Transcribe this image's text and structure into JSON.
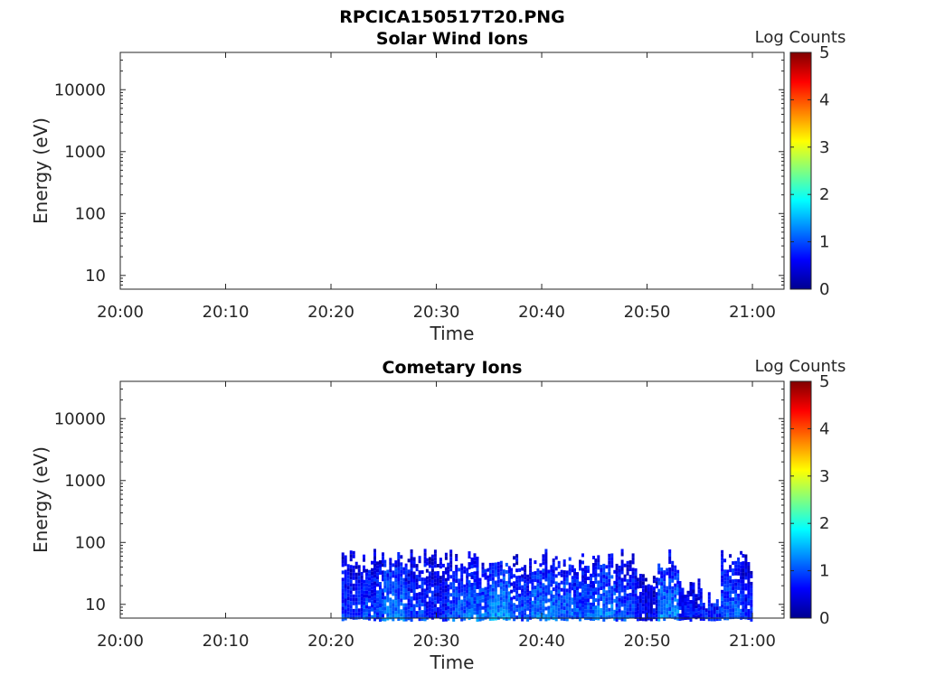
{
  "figure_title": "RPCICA150517T20.PNG",
  "chart_data": [
    {
      "type": "heatmap",
      "title": "Solar Wind Ions",
      "xlabel": "Time",
      "ylabel": "Energy (eV)",
      "y_scale": "log",
      "ylim": [
        6,
        40000
      ],
      "y_ticks": [
        10,
        100,
        1000,
        10000
      ],
      "y_tick_labels": [
        "10",
        "100",
        "1000",
        "10000"
      ],
      "x_ticks": [
        "20:00",
        "20:10",
        "20:20",
        "20:30",
        "20:40",
        "20:50",
        "21:00"
      ],
      "xlim": [
        "20:00",
        "21:03"
      ],
      "colorbar": {
        "label": "Log Counts",
        "min": 0,
        "max": 5,
        "ticks": [
          "0",
          "1",
          "2",
          "3",
          "4",
          "5"
        ],
        "colormap": "jet"
      },
      "data": []
    },
    {
      "type": "heatmap",
      "title": "Cometary Ions",
      "xlabel": "Time",
      "ylabel": "Energy (eV)",
      "y_scale": "log",
      "ylim": [
        6,
        40000
      ],
      "y_ticks": [
        10,
        100,
        1000,
        10000
      ],
      "y_tick_labels": [
        "10",
        "100",
        "1000",
        "10000"
      ],
      "x_ticks": [
        "20:00",
        "20:10",
        "20:20",
        "20:30",
        "20:40",
        "20:50",
        "21:00"
      ],
      "xlim": [
        "20:00",
        "21:03"
      ],
      "colorbar": {
        "label": "Log Counts",
        "min": 0,
        "max": 5,
        "ticks": [
          "0",
          "1",
          "2",
          "3",
          "4",
          "5"
        ],
        "colormap": "jet"
      },
      "data_range": {
        "time_start": "20:21",
        "time_end": "21:00",
        "energy_min_eV": 6,
        "energy_max_eV": 80,
        "log_counts_min": 0,
        "log_counts_max": 1.6
      },
      "bursts": [
        {
          "start": "20:21",
          "end": "20:23",
          "max_energy": 80,
          "level": 0.9
        },
        {
          "start": "20:23",
          "end": "20:25",
          "max_energy": 80,
          "level": 1.0
        },
        {
          "start": "20:25",
          "end": "20:27",
          "max_energy": 80,
          "level": 1.3
        },
        {
          "start": "20:27",
          "end": "20:29",
          "max_energy": 80,
          "level": 1.0
        },
        {
          "start": "20:29",
          "end": "20:31",
          "max_energy": 80,
          "level": 0.8
        },
        {
          "start": "20:31",
          "end": "20:33",
          "max_energy": 80,
          "level": 1.1
        },
        {
          "start": "20:33",
          "end": "20:35",
          "max_energy": 80,
          "level": 1.2
        },
        {
          "start": "20:35",
          "end": "20:37",
          "max_energy": 80,
          "level": 1.4
        },
        {
          "start": "20:37",
          "end": "20:39",
          "max_energy": 80,
          "level": 1.0
        },
        {
          "start": "20:39",
          "end": "20:41",
          "max_energy": 80,
          "level": 1.3
        },
        {
          "start": "20:41",
          "end": "20:43",
          "max_energy": 80,
          "level": 1.2
        },
        {
          "start": "20:43",
          "end": "20:45",
          "max_energy": 80,
          "level": 1.1
        },
        {
          "start": "20:45",
          "end": "20:47",
          "max_energy": 80,
          "level": 1.3
        },
        {
          "start": "20:47",
          "end": "20:49",
          "max_energy": 80,
          "level": 1.0
        },
        {
          "start": "20:49",
          "end": "20:51",
          "max_energy": 40,
          "level": 0.6
        },
        {
          "start": "20:51",
          "end": "20:53",
          "max_energy": 80,
          "level": 1.3
        },
        {
          "start": "20:53",
          "end": "20:55",
          "max_energy": 30,
          "level": 0.7
        },
        {
          "start": "20:55",
          "end": "20:57",
          "max_energy": 20,
          "level": 0.8
        },
        {
          "start": "20:57",
          "end": "20:59",
          "max_energy": 80,
          "level": 1.1
        },
        {
          "start": "20:59",
          "end": "21:00",
          "max_energy": 80,
          "level": 0.8
        }
      ]
    }
  ]
}
